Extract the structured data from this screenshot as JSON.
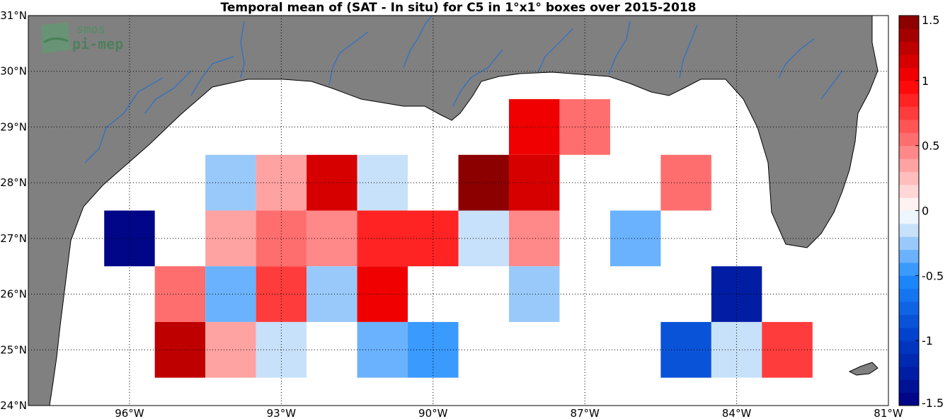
{
  "title": "Temporal mean of (SAT - In situ) for C5 in 1°x1° boxes over 2015-2018",
  "logo": {
    "line1": "smos",
    "line2": "pi-mep"
  },
  "map": {
    "lon_range": [
      -98,
      -81
    ],
    "lat_range": [
      24,
      31
    ],
    "lon_ticks": [
      {
        "value": -96,
        "label": "96°W"
      },
      {
        "value": -93,
        "label": "93°W"
      },
      {
        "value": -90,
        "label": "90°W"
      },
      {
        "value": -87,
        "label": "87°W"
      },
      {
        "value": -84,
        "label": "84°W"
      },
      {
        "value": -81,
        "label": "81°W"
      }
    ],
    "lat_ticks": [
      {
        "value": 24,
        "label": "24°N"
      },
      {
        "value": 25,
        "label": "25°N"
      },
      {
        "value": 26,
        "label": "26°N"
      },
      {
        "value": 27,
        "label": "27°N"
      },
      {
        "value": 28,
        "label": "28°N"
      },
      {
        "value": 29,
        "label": "29°N"
      },
      {
        "value": 30,
        "label": "30°N"
      },
      {
        "value": 31,
        "label": "31°N"
      }
    ],
    "grid": "dotted",
    "land_color": "#808080",
    "river_color": "#2a6fc9"
  },
  "colorbar": {
    "range": [
      -1.5,
      1.5
    ],
    "steps": 30,
    "ticks": [
      {
        "value": 1.5,
        "label": "1.5"
      },
      {
        "value": 1,
        "label": "1"
      },
      {
        "value": 0.5,
        "label": "0.5"
      },
      {
        "value": 0,
        "label": "0"
      },
      {
        "value": -0.5,
        "label": "-0.5"
      },
      {
        "value": -1,
        "label": "-1"
      },
      {
        "value": -1.5,
        "label": "-1.5"
      }
    ]
  },
  "boxes": [
    {
      "lon": -88.0,
      "lat": 29.0,
      "value": 1.05
    },
    {
      "lon": -87.0,
      "lat": 29.0,
      "value": 0.5
    },
    {
      "lon": -94.0,
      "lat": 28.0,
      "value": -0.25
    },
    {
      "lon": -93.0,
      "lat": 28.0,
      "value": 0.3
    },
    {
      "lon": -92.0,
      "lat": 28.0,
      "value": 1.1
    },
    {
      "lon": -91.0,
      "lat": 28.0,
      "value": -0.15
    },
    {
      "lon": -89.0,
      "lat": 28.0,
      "value": 1.45
    },
    {
      "lon": -88.0,
      "lat": 28.0,
      "value": 1.15
    },
    {
      "lon": -85.0,
      "lat": 28.0,
      "value": 0.5
    },
    {
      "lon": -96.0,
      "lat": 27.0,
      "value": -1.5
    },
    {
      "lon": -94.0,
      "lat": 27.0,
      "value": 0.3
    },
    {
      "lon": -93.0,
      "lat": 27.0,
      "value": 0.55
    },
    {
      "lon": -92.0,
      "lat": 27.0,
      "value": 0.45
    },
    {
      "lon": -91.0,
      "lat": 27.0,
      "value": 0.85
    },
    {
      "lon": -90.0,
      "lat": 27.0,
      "value": 0.85
    },
    {
      "lon": -89.0,
      "lat": 27.0,
      "value": -0.15
    },
    {
      "lon": -88.0,
      "lat": 27.0,
      "value": 0.4
    },
    {
      "lon": -86.0,
      "lat": 27.0,
      "value": -0.35
    },
    {
      "lon": -95.0,
      "lat": 26.0,
      "value": 0.55
    },
    {
      "lon": -94.0,
      "lat": 26.0,
      "value": -0.4
    },
    {
      "lon": -93.0,
      "lat": 26.0,
      "value": 0.7
    },
    {
      "lon": -92.0,
      "lat": 26.0,
      "value": -0.25
    },
    {
      "lon": -91.0,
      "lat": 26.0,
      "value": 1.0
    },
    {
      "lon": -88.0,
      "lat": 26.0,
      "value": -0.25
    },
    {
      "lon": -84.0,
      "lat": 26.0,
      "value": -1.25
    },
    {
      "lon": -95.0,
      "lat": 25.0,
      "value": 1.3
    },
    {
      "lon": -94.0,
      "lat": 25.0,
      "value": 0.3
    },
    {
      "lon": -93.0,
      "lat": 25.0,
      "value": -0.15
    },
    {
      "lon": -91.0,
      "lat": 25.0,
      "value": -0.35
    },
    {
      "lon": -90.0,
      "lat": 25.0,
      "value": -0.5
    },
    {
      "lon": -85.0,
      "lat": 25.0,
      "value": -0.85
    },
    {
      "lon": -84.0,
      "lat": 25.0,
      "value": -0.15
    },
    {
      "lon": -83.0,
      "lat": 25.0,
      "value": 0.7
    }
  ]
}
